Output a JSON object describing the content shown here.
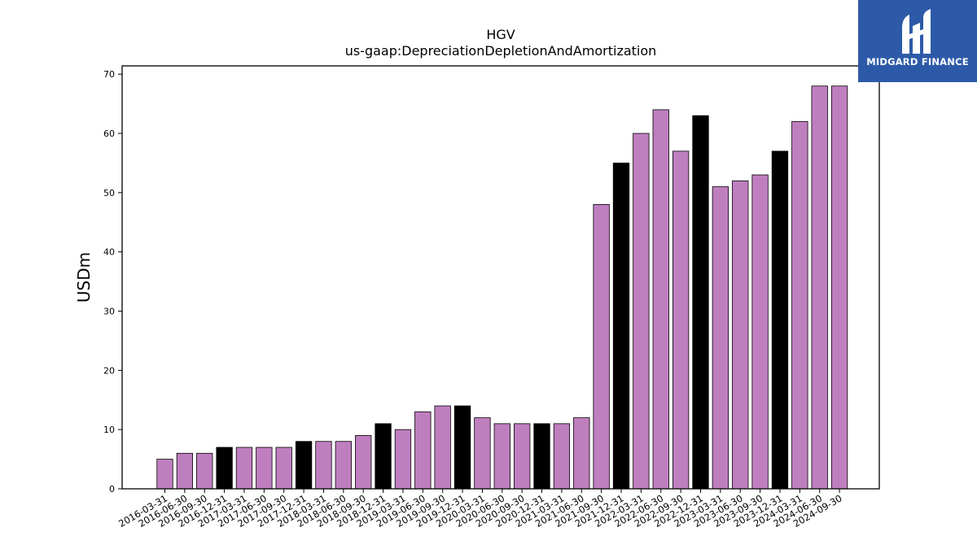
{
  "logo": {
    "text": "MIDGARD FINANCE",
    "background": "#2d5aa8"
  },
  "chart_data": {
    "type": "bar",
    "title": "HGV",
    "subtitle": "us-gaap:DepreciationDepletionAndAmortization",
    "xlabel": "",
    "ylabel": "USDm",
    "ylim": [
      0,
      71.4
    ],
    "yticks": [
      0,
      10,
      20,
      30,
      40,
      50,
      60,
      70
    ],
    "grid": false,
    "categories": [
      "2016-03-31",
      "2016-06-30",
      "2016-09-30",
      "2016-12-31",
      "2017-03-31",
      "2017-06-30",
      "2017-09-30",
      "2017-12-31",
      "2018-03-31",
      "2018-06-30",
      "2018-09-30",
      "2018-12-31",
      "2019-03-31",
      "2019-06-30",
      "2019-09-30",
      "2019-12-31",
      "2020-03-31",
      "2020-06-30",
      "2020-09-30",
      "2020-12-31",
      "2021-03-31",
      "2021-06-30",
      "2021-09-30",
      "2021-12-31",
      "2022-03-31",
      "2022-06-30",
      "2022-09-30",
      "2022-12-31",
      "2023-03-31",
      "2023-06-30",
      "2023-09-30",
      "2023-12-31",
      "2024-03-31",
      "2024-06-30",
      "2024-09-30"
    ],
    "values": [
      5,
      6,
      6,
      7,
      7,
      7,
      7,
      8,
      8,
      8,
      9,
      11,
      10,
      13,
      14,
      14,
      12,
      11,
      11,
      11,
      11,
      12,
      48,
      55,
      60,
      64,
      57,
      63,
      51,
      52,
      53,
      57,
      62,
      68,
      68
    ],
    "colors": {
      "quarter": "#bf7fbf",
      "year_end": "#000000",
      "edge": "#000000"
    }
  }
}
